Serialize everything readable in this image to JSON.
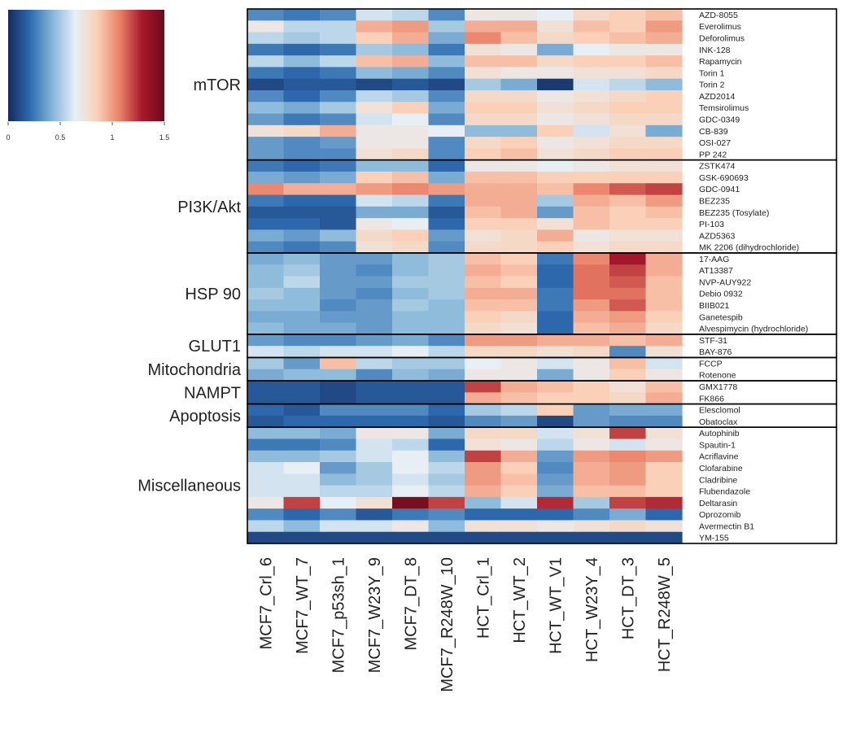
{
  "chart_data": {
    "type": "heatmap",
    "title": "",
    "xlabel": "",
    "ylabel": "",
    "colorbar": {
      "ticks": [
        "0",
        "0.5",
        "1",
        "1.5"
      ],
      "tick_values": [
        0,
        0.5,
        1,
        1.5
      ],
      "range": [
        0,
        1.5
      ],
      "colors": [
        "#152a60",
        "#2e6cb0",
        "#86b6d8",
        "#e6f0f6",
        "#fbd0b6",
        "#e98067",
        "#a6192b",
        "#6b0a1c"
      ]
    },
    "columns": [
      "MCF7_Crl_6",
      "MCF7_WT_7",
      "MCF7_p53sh_1",
      "MCF7_W23Y_9",
      "MCF7_DT_8",
      "MCF7_R248W_10",
      "HCT_Crl_1",
      "HCT_WT_2",
      "HCT_WT_V1",
      "HCT_W23Y_4",
      "HCT_DT_3",
      "HCT_R248W_5"
    ],
    "groups": [
      {
        "name": "mTOR",
        "rows": [
          {
            "drug": "AZD-8055",
            "values": [
              0.3,
              0.25,
              0.3,
              0.6,
              0.55,
              0.3,
              0.7,
              0.7,
              0.65,
              0.8,
              0.85,
              0.9
            ]
          },
          {
            "drug": "Everolimus",
            "values": [
              0.7,
              0.55,
              0.55,
              0.95,
              1.0,
              0.5,
              0.95,
              0.95,
              0.75,
              0.9,
              0.85,
              1.0
            ]
          },
          {
            "drug": "Deforolimus",
            "values": [
              0.55,
              0.5,
              0.55,
              0.85,
              0.95,
              0.4,
              1.05,
              0.9,
              0.8,
              0.85,
              0.9,
              0.95
            ]
          },
          {
            "drug": "INK-128",
            "values": [
              0.25,
              0.2,
              0.25,
              0.5,
              0.45,
              0.25,
              0.75,
              0.7,
              0.4,
              0.65,
              0.7,
              0.7
            ]
          },
          {
            "drug": "Rapamycin",
            "values": [
              0.55,
              0.45,
              0.55,
              0.9,
              0.95,
              0.45,
              0.9,
              0.9,
              0.8,
              0.85,
              0.85,
              0.9
            ]
          },
          {
            "drug": "Torin 1",
            "values": [
              0.25,
              0.2,
              0.25,
              0.45,
              0.4,
              0.3,
              0.75,
              0.7,
              0.7,
              0.75,
              0.75,
              0.8
            ]
          },
          {
            "drug": "Torin 2",
            "values": [
              0.1,
              0.15,
              0.15,
              0.1,
              0.15,
              0.1,
              0.5,
              0.4,
              0.05,
              0.6,
              0.55,
              0.45
            ]
          },
          {
            "drug": "AZD2014",
            "values": [
              0.3,
              0.2,
              0.3,
              0.55,
              0.5,
              0.3,
              0.8,
              0.8,
              0.7,
              0.75,
              0.8,
              0.85
            ]
          },
          {
            "drug": "Temsirolimus",
            "values": [
              0.45,
              0.4,
              0.5,
              0.75,
              0.85,
              0.4,
              0.85,
              0.85,
              0.75,
              0.8,
              0.85,
              0.85
            ]
          },
          {
            "drug": "GDC-0349",
            "values": [
              0.35,
              0.25,
              0.3,
              0.6,
              0.65,
              0.3,
              0.8,
              0.8,
              0.7,
              0.75,
              0.8,
              0.8
            ]
          },
          {
            "drug": "CB-839",
            "values": [
              0.75,
              0.8,
              0.95,
              0.7,
              0.7,
              0.65,
              0.45,
              0.45,
              0.85,
              0.6,
              0.75,
              0.4
            ]
          },
          {
            "drug": "OSI-027",
            "values": [
              0.35,
              0.3,
              0.35,
              0.7,
              0.7,
              0.3,
              0.8,
              0.85,
              0.7,
              0.75,
              0.8,
              0.8
            ]
          },
          {
            "drug": "PP 242",
            "values": [
              0.35,
              0.3,
              0.3,
              0.75,
              0.8,
              0.3,
              0.85,
              0.9,
              0.75,
              0.8,
              0.85,
              0.85
            ]
          }
        ]
      },
      {
        "name": "PI3K/Akt",
        "rows": [
          {
            "drug": "ZSTK474",
            "values": [
              0.25,
              0.2,
              0.25,
              0.45,
              0.45,
              0.2,
              0.7,
              0.7,
              0.65,
              0.7,
              0.75,
              0.75
            ]
          },
          {
            "drug": "GSK-690693",
            "values": [
              0.4,
              0.35,
              0.4,
              0.85,
              0.9,
              0.4,
              0.9,
              0.9,
              0.85,
              0.85,
              0.85,
              0.85
            ]
          },
          {
            "drug": "GDC-0941",
            "values": [
              1.05,
              0.95,
              0.95,
              1.0,
              1.05,
              1.0,
              0.95,
              0.95,
              0.9,
              1.05,
              1.15,
              1.2
            ]
          },
          {
            "drug": "BEZ235",
            "values": [
              0.25,
              0.2,
              0.2,
              0.6,
              0.55,
              0.25,
              0.95,
              0.95,
              0.5,
              0.95,
              0.9,
              1.0
            ]
          },
          {
            "drug": "BEZ235 (Tosylate)",
            "values": [
              0.15,
              0.15,
              0.15,
              0.4,
              0.4,
              0.15,
              0.9,
              0.95,
              0.35,
              0.9,
              0.85,
              0.9
            ]
          },
          {
            "drug": "PI-103",
            "values": [
              0.2,
              0.2,
              0.15,
              0.7,
              0.65,
              0.2,
              0.85,
              0.85,
              0.75,
              0.9,
              0.85,
              0.85
            ]
          },
          {
            "drug": "AZD5363",
            "values": [
              0.4,
              0.35,
              0.45,
              0.8,
              0.85,
              0.35,
              0.75,
              0.8,
              0.95,
              0.7,
              0.75,
              0.75
            ]
          },
          {
            "drug": "MK 2206 (dihydrochloride)",
            "values": [
              0.3,
              0.25,
              0.3,
              0.75,
              0.8,
              0.3,
              0.8,
              0.8,
              0.85,
              0.75,
              0.8,
              0.8
            ]
          }
        ]
      },
      {
        "name": "HSP 90",
        "rows": [
          {
            "drug": "17-AAG",
            "values": [
              0.4,
              0.45,
              0.35,
              0.35,
              0.45,
              0.5,
              0.9,
              0.85,
              0.25,
              1.05,
              1.3,
              0.95
            ]
          },
          {
            "drug": "AT13387",
            "values": [
              0.45,
              0.5,
              0.35,
              0.3,
              0.45,
              0.5,
              0.95,
              0.9,
              0.2,
              1.1,
              1.2,
              0.95
            ]
          },
          {
            "drug": "NVP-AUY922",
            "values": [
              0.45,
              0.55,
              0.35,
              0.35,
              0.5,
              0.5,
              0.9,
              0.85,
              0.2,
              1.1,
              1.15,
              0.9
            ]
          },
          {
            "drug": "Debio 0932",
            "values": [
              0.5,
              0.45,
              0.35,
              0.3,
              0.45,
              0.5,
              0.95,
              0.95,
              0.25,
              1.1,
              1.1,
              0.9
            ]
          },
          {
            "drug": "BIIB021",
            "values": [
              0.45,
              0.45,
              0.3,
              0.35,
              0.5,
              0.45,
              0.9,
              0.9,
              0.25,
              1.0,
              1.15,
              0.9
            ]
          },
          {
            "drug": "Ganetespib",
            "values": [
              0.4,
              0.4,
              0.35,
              0.35,
              0.45,
              0.45,
              0.85,
              0.8,
              0.2,
              0.95,
              1.0,
              0.85
            ]
          },
          {
            "drug": "Alvespimycin (hydrochloride)",
            "values": [
              0.45,
              0.4,
              0.4,
              0.35,
              0.45,
              0.45,
              0.8,
              0.75,
              0.2,
              0.9,
              0.95,
              0.8
            ]
          }
        ]
      },
      {
        "name": "GLUT1",
        "rows": [
          {
            "drug": "STF-31",
            "values": [
              0.35,
              0.3,
              0.3,
              0.35,
              0.4,
              0.3,
              1.0,
              1.0,
              0.95,
              0.95,
              0.9,
              0.95
            ]
          },
          {
            "drug": "BAY-876",
            "values": [
              0.6,
              0.55,
              0.6,
              0.6,
              0.65,
              0.55,
              0.8,
              0.8,
              0.75,
              0.8,
              0.3,
              0.75
            ]
          }
        ]
      },
      {
        "name": "Mitochondria",
        "rows": [
          {
            "drug": "FCCP",
            "values": [
              0.5,
              0.35,
              0.9,
              0.55,
              0.5,
              0.5,
              0.65,
              0.7,
              0.6,
              0.7,
              0.9,
              0.6
            ]
          },
          {
            "drug": "Rotenone",
            "values": [
              0.4,
              0.45,
              0.45,
              0.3,
              0.45,
              0.4,
              0.7,
              0.7,
              0.4,
              0.7,
              0.85,
              0.7
            ]
          }
        ]
      },
      {
        "name": "NAMPT",
        "rows": [
          {
            "drug": "GMX1778",
            "values": [
              0.15,
              0.15,
              0.1,
              0.15,
              0.15,
              0.15,
              1.2,
              0.95,
              0.9,
              0.85,
              0.75,
              0.9
            ]
          },
          {
            "drug": "FK866",
            "values": [
              0.15,
              0.15,
              0.1,
              0.15,
              0.15,
              0.15,
              0.95,
              0.9,
              0.85,
              0.85,
              0.8,
              0.95
            ]
          }
        ]
      },
      {
        "name": "Apoptosis",
        "rows": [
          {
            "drug": "Elesclomol",
            "values": [
              0.2,
              0.15,
              0.3,
              0.3,
              0.3,
              0.2,
              0.5,
              0.55,
              0.85,
              0.35,
              0.4,
              0.4
            ]
          },
          {
            "drug": "Obatoclax",
            "values": [
              0.15,
              0.2,
              0.2,
              0.2,
              0.2,
              0.15,
              0.3,
              0.35,
              0.1,
              0.35,
              0.3,
              0.3
            ]
          }
        ]
      },
      {
        "name": "Miscellaneous",
        "rows": [
          {
            "drug": "Autophinib",
            "values": [
              0.45,
              0.45,
              0.4,
              0.7,
              0.7,
              0.4,
              0.8,
              0.8,
              0.6,
              0.75,
              1.2,
              0.75
            ]
          },
          {
            "drug": "Spautin-1",
            "values": [
              0.25,
              0.25,
              0.3,
              0.6,
              0.55,
              0.2,
              0.75,
              0.7,
              0.55,
              0.7,
              0.6,
              0.7
            ]
          },
          {
            "drug": "Acriflavine",
            "values": [
              0.45,
              0.45,
              0.5,
              0.6,
              0.65,
              0.45,
              1.2,
              0.95,
              0.35,
              1.0,
              1.05,
              1.0
            ]
          },
          {
            "drug": "Clofarabine",
            "values": [
              0.6,
              0.65,
              0.35,
              0.5,
              0.65,
              0.55,
              1.0,
              0.85,
              0.3,
              0.95,
              1.0,
              0.85
            ]
          },
          {
            "drug": "Cladribine",
            "values": [
              0.6,
              0.6,
              0.45,
              0.5,
              0.6,
              0.5,
              1.0,
              0.9,
              0.35,
              0.95,
              1.0,
              0.85
            ]
          },
          {
            "drug": "Flubendazole",
            "values": [
              0.6,
              0.6,
              0.55,
              0.55,
              0.65,
              0.55,
              0.95,
              0.85,
              0.4,
              0.9,
              0.9,
              0.85
            ]
          },
          {
            "drug": "Deltarasin",
            "values": [
              0.7,
              1.2,
              0.65,
              0.75,
              1.45,
              1.2,
              0.45,
              0.6,
              1.25,
              0.5,
              1.2,
              1.25
            ]
          },
          {
            "drug": "Oprozomib",
            "values": [
              0.3,
              0.2,
              0.3,
              0.15,
              0.25,
              0.3,
              0.2,
              0.2,
              0.2,
              0.3,
              0.4,
              0.2
            ]
          },
          {
            "drug": "Avermectin B1",
            "values": [
              0.55,
              0.45,
              0.6,
              0.6,
              0.7,
              0.45,
              0.75,
              0.75,
              0.7,
              0.75,
              0.8,
              0.75
            ]
          },
          {
            "drug": "YM-155",
            "values": [
              0.1,
              0.1,
              0.1,
              0.1,
              0.1,
              0.1,
              0.1,
              0.1,
              0.1,
              0.1,
              0.1,
              0.1
            ]
          }
        ]
      }
    ]
  }
}
